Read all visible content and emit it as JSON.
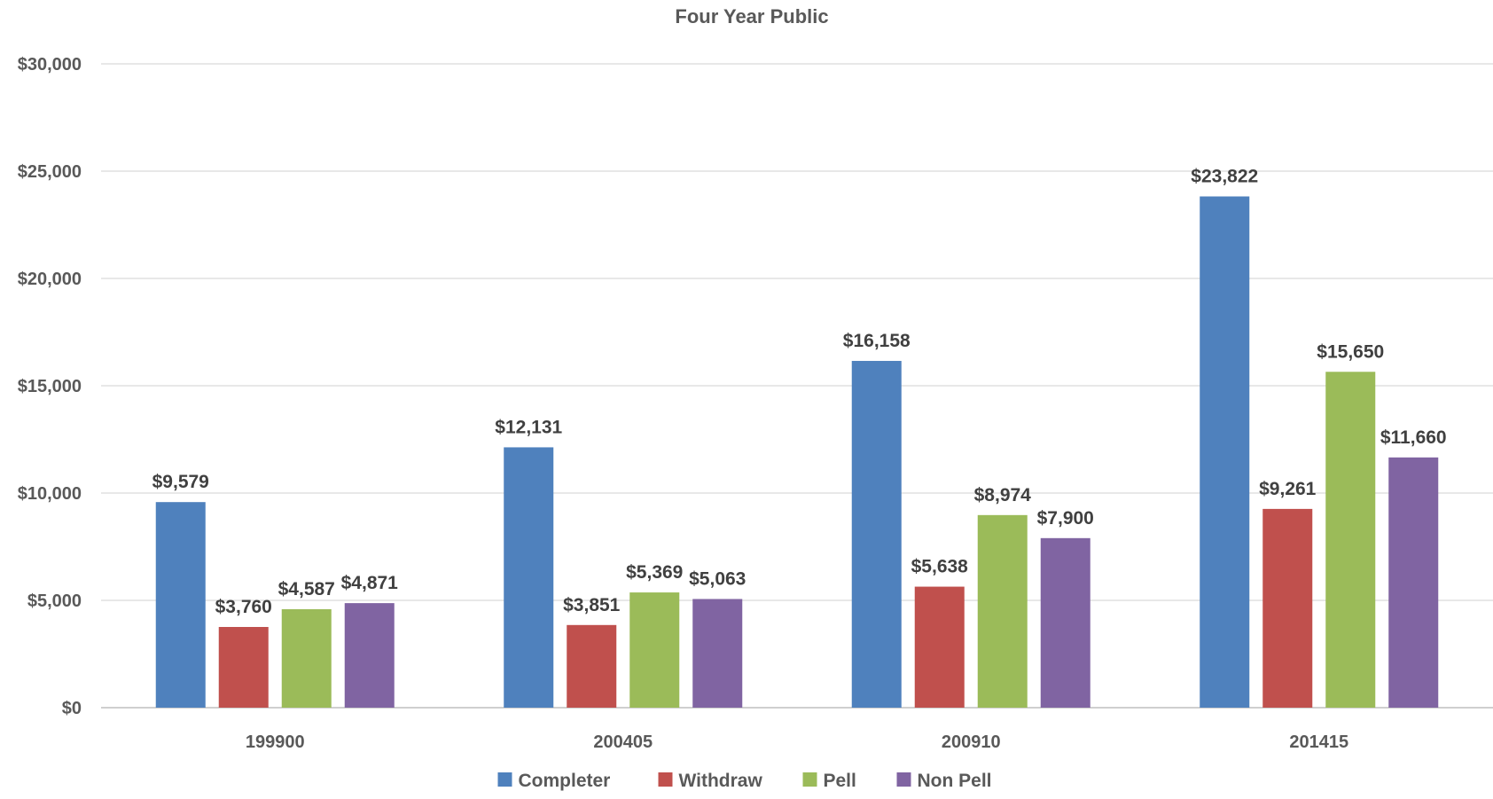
{
  "chart_data": {
    "type": "bar",
    "title": "Four Year Public",
    "categories": [
      "199900",
      "200405",
      "200910",
      "201415"
    ],
    "series": [
      {
        "name": "Completer",
        "color": "#4f81bd",
        "values": [
          9579,
          12131,
          16158,
          23822
        ],
        "labels": [
          "$9,579",
          "$12,131",
          "$16,158",
          "$23,822"
        ]
      },
      {
        "name": "Withdraw",
        "color": "#c0504d",
        "values": [
          3760,
          3851,
          5638,
          9261
        ],
        "labels": [
          "$3,760",
          "$3,851",
          "$5,638",
          "$9,261"
        ]
      },
      {
        "name": "Pell",
        "color": "#9bbb59",
        "values": [
          4587,
          5369,
          8974,
          15650
        ],
        "labels": [
          "$4,587",
          "$5,369",
          "$8,974",
          "$15,650"
        ]
      },
      {
        "name": "Non Pell",
        "color": "#8064a2",
        "values": [
          4871,
          5063,
          7900,
          11660
        ],
        "labels": [
          "$4,871",
          "$5,063",
          "$7,900",
          "$11,660"
        ]
      }
    ],
    "ylim": [
      0,
      30000
    ],
    "yticks": [
      0,
      5000,
      10000,
      15000,
      20000,
      25000,
      30000
    ],
    "ytick_labels": [
      "$0",
      "$5,000",
      "$10,000",
      "$15,000",
      "$20,000",
      "$25,000",
      "$30,000"
    ],
    "xlabel": "",
    "ylabel": "",
    "grid": true,
    "legend": "bottom-center"
  }
}
